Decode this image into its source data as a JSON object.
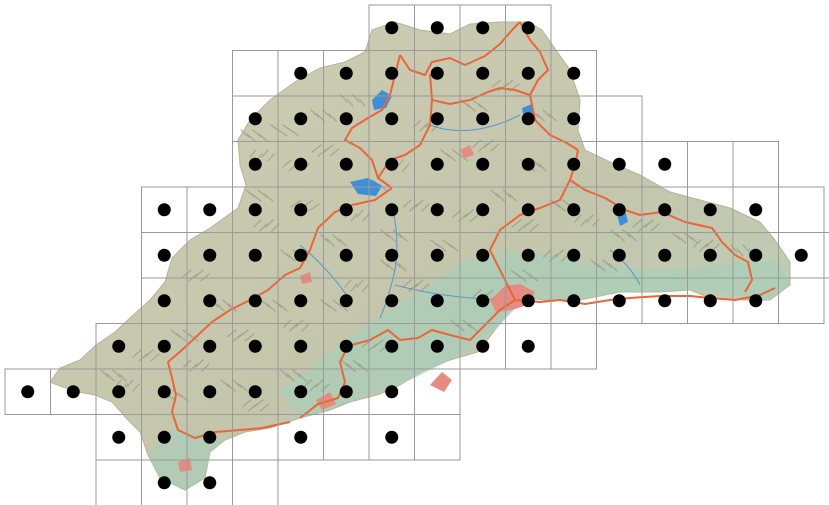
{
  "map": {
    "colors": {
      "land": "#c9c8ae",
      "lowland": "#a9cdb8",
      "relief": "#8f8a78",
      "boundary": "#e8663a",
      "water": "#3f8fd8",
      "urban": "#e58c82",
      "grid": "#9a9a9a",
      "dot": "#000000",
      "background": "#ffffff"
    },
    "dots_per_row": [
      [
        8,
        9,
        10,
        11
      ],
      [
        6,
        7,
        8,
        9,
        10,
        11,
        12
      ],
      [
        5,
        6,
        7,
        8,
        9,
        10,
        11,
        12
      ],
      [
        5,
        6,
        7,
        8,
        9,
        10,
        11,
        12,
        13,
        14
      ],
      [
        3,
        4,
        5,
        6,
        7,
        8,
        9,
        10,
        11,
        12,
        13,
        14,
        15,
        16
      ],
      [
        3,
        4,
        5,
        6,
        7,
        8,
        9,
        10,
        11,
        12,
        13,
        14,
        15,
        16,
        17
      ],
      [
        3,
        4,
        5,
        6,
        7,
        8,
        9,
        10,
        11,
        12,
        13,
        14,
        15,
        16
      ],
      [
        2,
        3,
        4,
        5,
        6,
        7,
        8,
        9,
        10,
        11
      ],
      [
        0,
        1,
        2,
        3,
        4,
        5,
        6,
        7,
        8
      ],
      [
        2,
        3,
        4,
        6,
        8
      ],
      [
        3,
        4
      ]
    ]
  }
}
